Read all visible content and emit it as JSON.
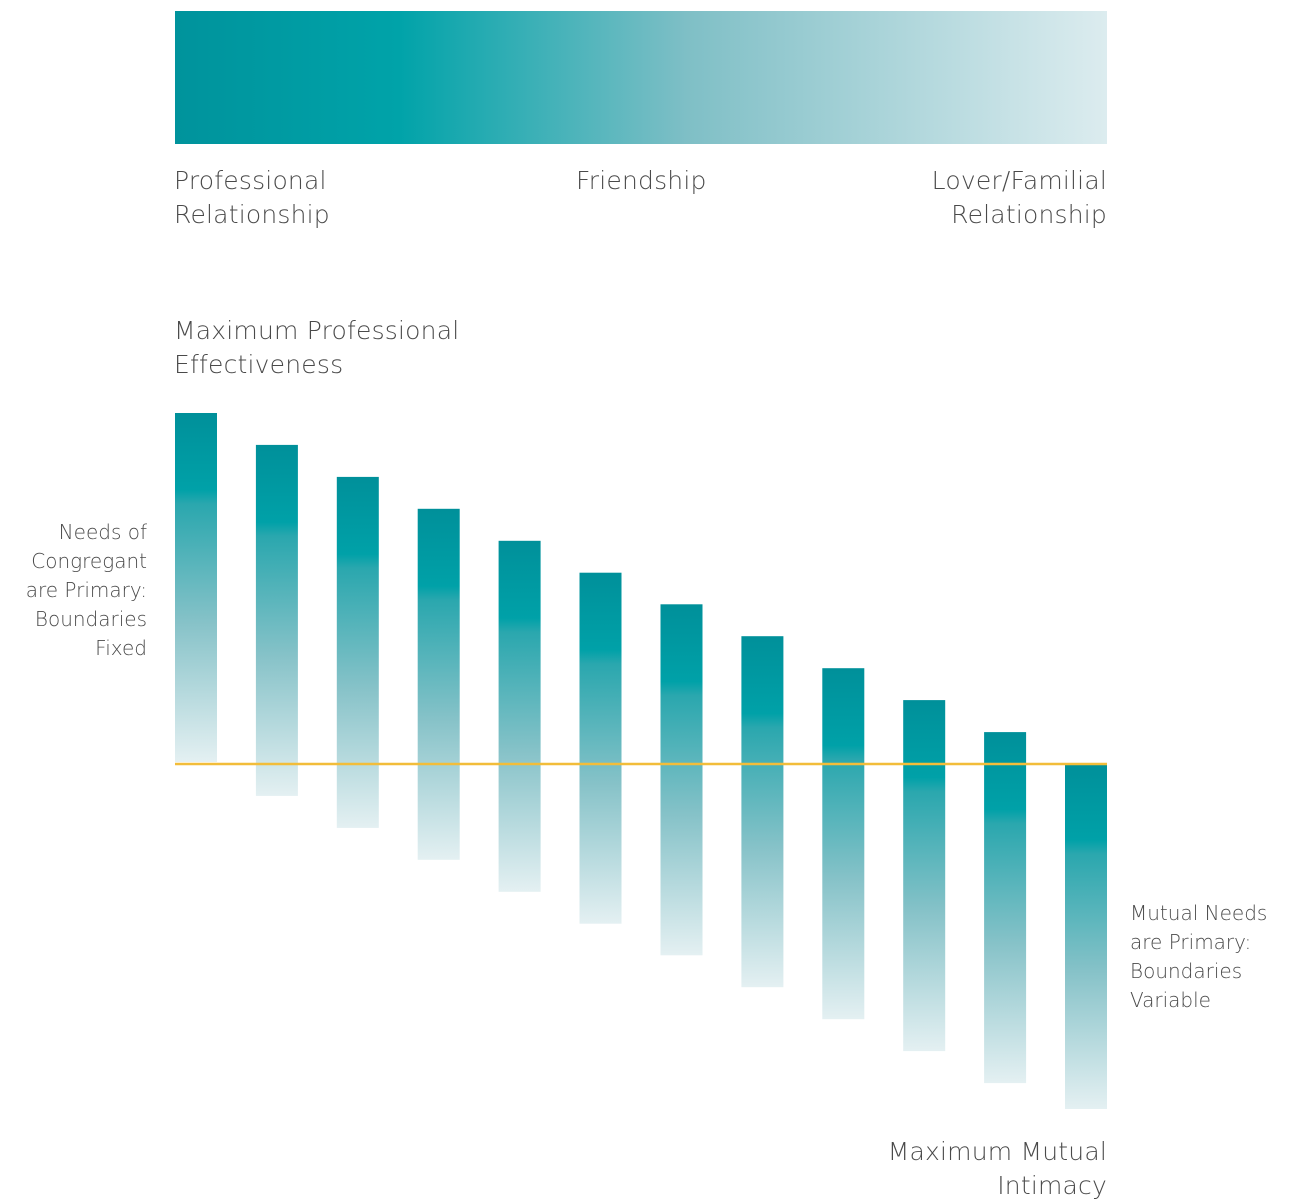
{
  "spectrum": {
    "left_label": [
      "Professional",
      "Relationship"
    ],
    "middle_label": "Friendship",
    "right_label": [
      "Lover/Familial",
      "Relationship"
    ]
  },
  "diagram": {
    "top_label": [
      "Maximum Professional",
      "Effectiveness"
    ],
    "bottom_label": [
      "Maximum Mutual",
      "Intimacy"
    ],
    "left_side_label": [
      "Needs of",
      "Congregant",
      "are Primary:",
      "Boundaries",
      "Fixed"
    ],
    "right_side_label": [
      "Mutual Needs",
      "are Primary:",
      "Boundaries",
      "Variable"
    ]
  },
  "colors": {
    "teal_dark": "#00909a",
    "teal_bright": "#00a1a8",
    "teal_pale": "#e2eff1",
    "baseline": "#f2bd3a"
  },
  "chart_data": {
    "type": "bar",
    "bars_count": 12,
    "note_values": "each bar spans a fixed band; position shifts from above to below the baseline",
    "offset_fraction": [
      0.0,
      0.091,
      0.182,
      0.273,
      0.364,
      0.455,
      0.545,
      0.636,
      0.727,
      0.818,
      0.909,
      1.0
    ]
  }
}
